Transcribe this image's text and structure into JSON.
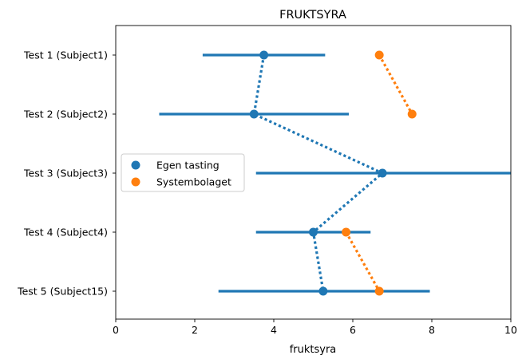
{
  "chart_data": {
    "type": "scatter",
    "title": "FRUKTSYRA",
    "xlabel": "fruktsyra",
    "ylabel": "",
    "xlim": [
      0,
      10
    ],
    "xticks": [
      "0",
      "2",
      "4",
      "6",
      "8",
      "10"
    ],
    "categories": [
      "Test 1 (Subject1)",
      "Test 2 (Subject2)",
      "Test 3 (Subject3)",
      "Test 4 (Subject4)",
      "Test 5 (Subject15)"
    ],
    "grid": false,
    "legend_position": "center-left",
    "series": [
      {
        "name": "Egen tasting",
        "color": "#1f77b4",
        "line_style": "dotted",
        "values": [
          3.75,
          3.5,
          6.75,
          5.0,
          5.25
        ],
        "error_low": [
          2.2,
          1.1,
          3.55,
          3.55,
          2.6
        ],
        "error_high": [
          5.3,
          5.9,
          10.0,
          6.45,
          7.95
        ]
      },
      {
        "name": "Systembolaget",
        "color": "#ff7f0e",
        "line_style": "dotted",
        "values": [
          6.67,
          7.5,
          null,
          5.83,
          6.67
        ],
        "segments": [
          [
            0,
            1
          ],
          [
            3,
            4
          ]
        ]
      }
    ]
  }
}
